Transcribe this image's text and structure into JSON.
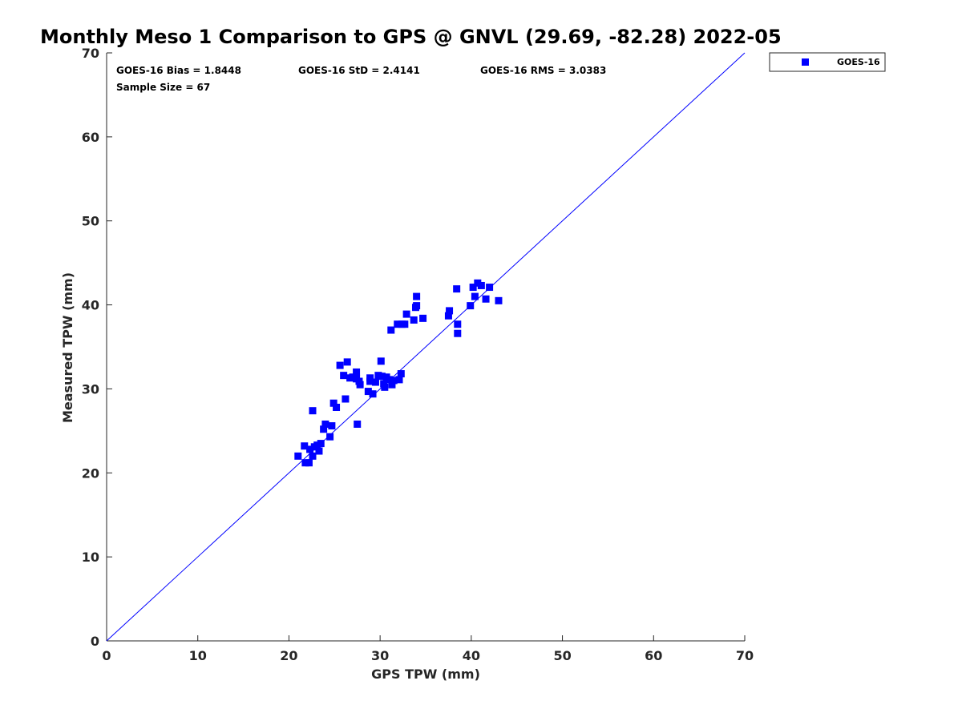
{
  "chart_data": {
    "type": "scatter",
    "title": "Monthly Meso 1 Comparison to GPS @ GNVL (29.69, -82.28) 2022-05",
    "xlabel": "GPS TPW (mm)",
    "ylabel": "Measured TPW (mm)",
    "xlim": [
      0,
      70
    ],
    "ylim": [
      0,
      70
    ],
    "xticks": [
      "0",
      "10",
      "20",
      "30",
      "40",
      "50",
      "60",
      "70"
    ],
    "yticks": [
      "0",
      "10",
      "20",
      "30",
      "40",
      "50",
      "60",
      "70"
    ],
    "grid": false,
    "legend_position": "top-right",
    "one_to_one_line": true,
    "line_color": "#0000ff",
    "marker_color": "#0000ff",
    "stats": {
      "bias": "GOES-16 Bias = 1.8448",
      "std": "GOES-16 StD = 2.4141",
      "rms": "GOES-16 RMS = 3.0383",
      "sample": "Sample Size = 67"
    },
    "series": [
      {
        "name": "GOES-16",
        "points": [
          [
            21.0,
            22.0
          ],
          [
            21.7,
            23.2
          ],
          [
            21.8,
            21.2
          ],
          [
            22.2,
            21.2
          ],
          [
            22.3,
            22.8
          ],
          [
            22.6,
            27.4
          ],
          [
            22.6,
            22.0
          ],
          [
            22.8,
            23.1
          ],
          [
            23.1,
            23.3
          ],
          [
            23.3,
            22.6
          ],
          [
            23.5,
            23.5
          ],
          [
            23.8,
            25.2
          ],
          [
            24.0,
            25.8
          ],
          [
            24.5,
            24.3
          ],
          [
            24.7,
            25.6
          ],
          [
            24.9,
            28.3
          ],
          [
            25.2,
            27.8
          ],
          [
            25.6,
            32.8
          ],
          [
            26.0,
            31.6
          ],
          [
            26.2,
            28.8
          ],
          [
            26.4,
            33.2
          ],
          [
            26.7,
            31.3
          ],
          [
            27.0,
            31.4
          ],
          [
            27.4,
            32.0
          ],
          [
            27.5,
            25.8
          ],
          [
            27.4,
            31.2
          ],
          [
            27.8,
            30.5
          ],
          [
            27.7,
            30.9
          ],
          [
            28.7,
            29.7
          ],
          [
            28.9,
            30.9
          ],
          [
            28.9,
            31.3
          ],
          [
            29.2,
            29.4
          ],
          [
            29.5,
            30.8
          ],
          [
            29.8,
            31.6
          ],
          [
            30.1,
            33.3
          ],
          [
            30.2,
            31.5
          ],
          [
            30.4,
            30.6
          ],
          [
            30.5,
            30.2
          ],
          [
            30.7,
            31.4
          ],
          [
            31.0,
            31.1
          ],
          [
            31.2,
            37.0
          ],
          [
            31.3,
            30.5
          ],
          [
            31.5,
            31.0
          ],
          [
            31.9,
            37.7
          ],
          [
            32.1,
            31.1
          ],
          [
            32.3,
            31.8
          ],
          [
            32.4,
            37.7
          ],
          [
            32.7,
            37.7
          ],
          [
            32.9,
            38.9
          ],
          [
            33.7,
            38.2
          ],
          [
            33.9,
            39.7
          ],
          [
            34.0,
            41.0
          ],
          [
            34.0,
            39.9
          ],
          [
            34.7,
            38.4
          ],
          [
            37.5,
            38.7
          ],
          [
            37.6,
            39.3
          ],
          [
            38.4,
            41.9
          ],
          [
            38.5,
            37.7
          ],
          [
            38.5,
            36.6
          ],
          [
            39.9,
            39.9
          ],
          [
            40.2,
            42.1
          ],
          [
            40.4,
            41.0
          ],
          [
            40.7,
            42.6
          ],
          [
            41.1,
            42.3
          ],
          [
            41.6,
            40.7
          ],
          [
            42.0,
            42.1
          ],
          [
            43.0,
            40.5
          ]
        ]
      }
    ]
  }
}
